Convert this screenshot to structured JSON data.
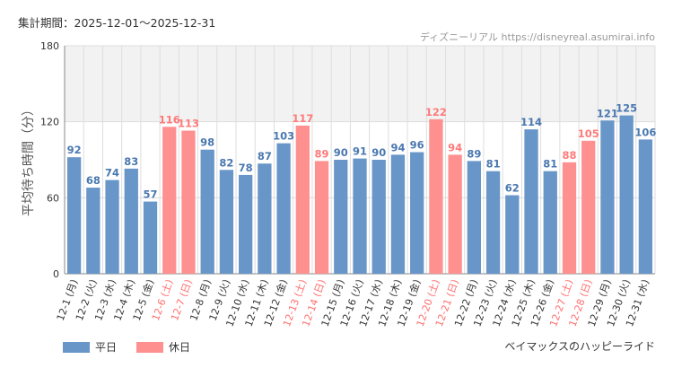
{
  "period_label": "集計期間：2025-12-01～2025-12-31",
  "credit": "ディズニーリアル https://disneyreal.asumirai.info",
  "ride_name": "ベイマックスのハッピーライド",
  "legend": {
    "weekday": "平日",
    "holiday": "休日"
  },
  "colors": {
    "weekday": "#6896c8",
    "holiday": "#ff9090",
    "weekday_text": "#4a78b0",
    "holiday_text": "#ff7a7a",
    "label_weekday": "#333333",
    "label_holiday": "#ff6e6e",
    "band": "#f2f2f2",
    "grid": "#dddddd"
  },
  "chart_data": {
    "type": "bar",
    "ylabel": "平均待ち時間（分）",
    "ylim": [
      0,
      180
    ],
    "yticks": [
      0,
      60,
      120,
      180
    ],
    "highlight_band": [
      120,
      180
    ],
    "categories": [
      "12-1 (月)",
      "12-2 (火)",
      "12-3 (水)",
      "12-4 (木)",
      "12-5 (金)",
      "12-6 (土)",
      "12-7 (日)",
      "12-8 (月)",
      "12-9 (火)",
      "12-10 (水)",
      "12-11 (木)",
      "12-12 (金)",
      "12-13 (土)",
      "12-14 (日)",
      "12-15 (月)",
      "12-16 (火)",
      "12-17 (水)",
      "12-18 (木)",
      "12-19 (金)",
      "12-20 (土)",
      "12-21 (日)",
      "12-22 (月)",
      "12-23 (火)",
      "12-24 (水)",
      "12-25 (木)",
      "12-26 (金)",
      "12-27 (土)",
      "12-28 (日)",
      "12-29 (月)",
      "12-30 (火)",
      "12-31 (水)"
    ],
    "values": [
      92,
      68,
      74,
      83,
      57,
      116,
      113,
      98,
      82,
      78,
      87,
      103,
      117,
      89,
      90,
      91,
      90,
      94,
      96,
      122,
      94,
      89,
      81,
      62,
      114,
      81,
      88,
      105,
      121,
      125,
      106
    ],
    "holiday": [
      false,
      false,
      false,
      false,
      false,
      true,
      true,
      false,
      false,
      false,
      false,
      false,
      true,
      true,
      false,
      false,
      false,
      false,
      false,
      true,
      true,
      false,
      false,
      false,
      false,
      false,
      true,
      true,
      false,
      false,
      false
    ]
  }
}
